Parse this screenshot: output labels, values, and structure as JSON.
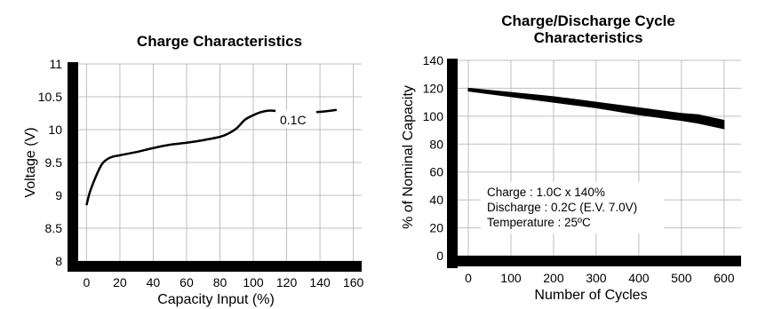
{
  "chart_data": [
    {
      "type": "line",
      "title": "Charge Characteristics",
      "xlabel": "Capacity Input (%)",
      "ylabel": "Voltage (V)",
      "xlim": [
        -5,
        165
      ],
      "ylim": [
        8,
        11
      ],
      "x_ticks": [
        "0",
        "20",
        "40",
        "60",
        "80",
        "100",
        "120",
        "140",
        "160"
      ],
      "y_ticks": [
        "8",
        "8.5",
        "9",
        "9.5",
        "10",
        "10.5",
        "11"
      ],
      "grid": true,
      "series": [
        {
          "name": "0.1C",
          "x": [
            0,
            2,
            5,
            8,
            10,
            13,
            16,
            20,
            30,
            40,
            50,
            60,
            70,
            80,
            85,
            90,
            95,
            100,
            105,
            110,
            115,
            120,
            130,
            140,
            150
          ],
          "y": [
            8.85,
            9.05,
            9.25,
            9.42,
            9.5,
            9.56,
            9.59,
            9.61,
            9.66,
            9.72,
            9.77,
            9.8,
            9.84,
            9.89,
            9.94,
            10.02,
            10.15,
            10.22,
            10.27,
            10.29,
            10.28,
            10.27,
            10.27,
            10.27,
            10.3
          ]
        }
      ]
    },
    {
      "type": "area",
      "title": [
        "Charge/Discharge Cycle",
        "Characteristics"
      ],
      "xlabel": "Number of Cycles",
      "ylabel": "% of Nominal Capacity",
      "xlim": [
        -25,
        640
      ],
      "ylim": [
        0,
        140
      ],
      "x_ticks": [
        "0",
        "100",
        "200",
        "300",
        "400",
        "500",
        "600"
      ],
      "y_ticks": [
        "0",
        "20",
        "40",
        "60",
        "80",
        "100",
        "120",
        "140"
      ],
      "grid": true,
      "band": {
        "x": [
          0,
          100,
          200,
          300,
          400,
          500,
          540,
          600
        ],
        "upper": [
          120,
          117,
          114,
          110,
          106,
          102,
          101,
          97
        ],
        "lower": [
          118,
          114,
          110,
          106,
          101,
          97,
          95,
          91
        ]
      },
      "annotations": [
        "Charge : 1.0C x 140%",
        "Discharge : 0.2C (E.V. 7.0V)",
        "Temperature : 25ºC"
      ]
    }
  ]
}
